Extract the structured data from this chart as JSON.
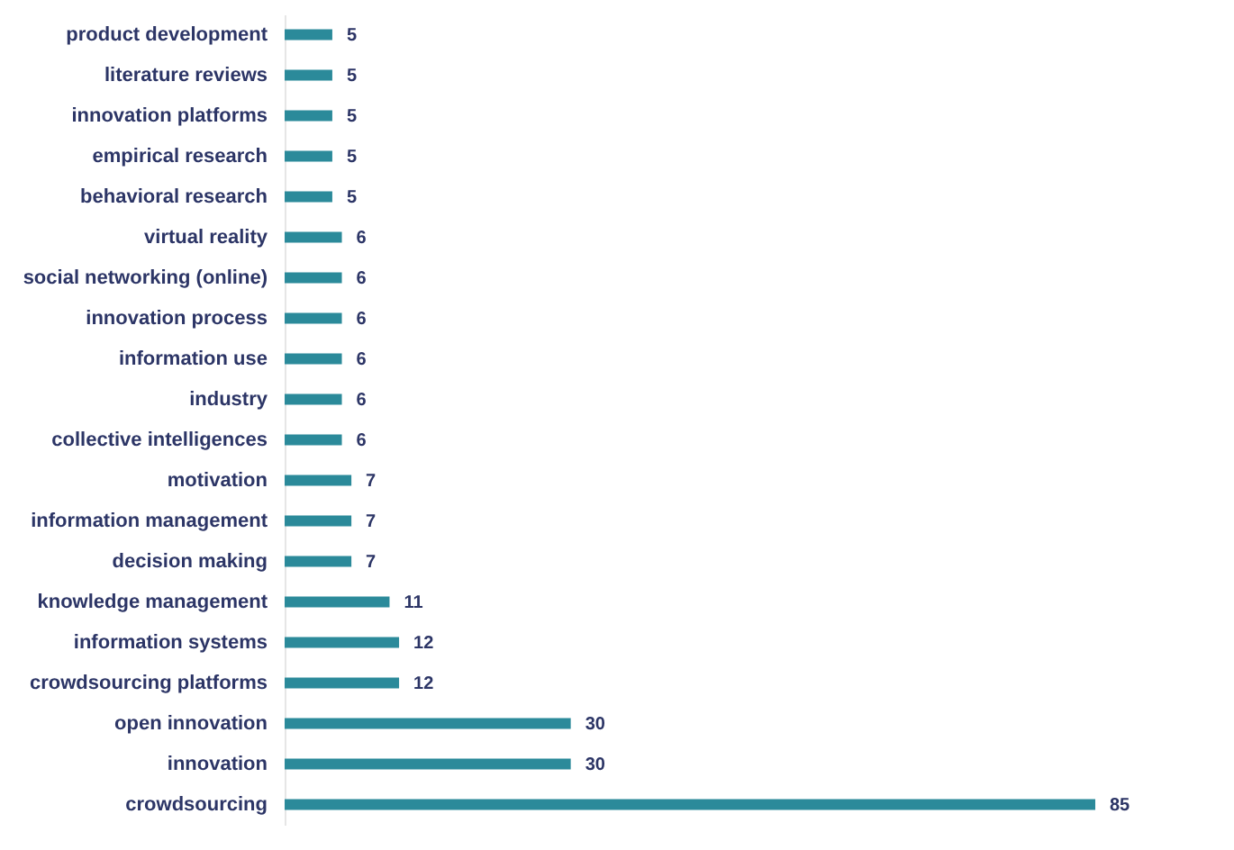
{
  "chart_data": {
    "type": "bar",
    "orientation": "horizontal",
    "data_labels": true,
    "color": "#2b8a9a",
    "categories": [
      "product development",
      "literature reviews",
      "innovation platforms",
      "empirical research",
      "behavioral research",
      "virtual reality",
      "social networking (online)",
      "innovation process",
      "information use",
      "industry",
      "collective intelligences",
      "motivation",
      "information management",
      "decision making",
      "knowledge management",
      "information systems",
      "crowdsourcing platforms",
      "open innovation",
      "innovation",
      "crowdsourcing"
    ],
    "values": [
      5,
      5,
      5,
      5,
      5,
      6,
      6,
      6,
      6,
      6,
      6,
      7,
      7,
      7,
      11,
      12,
      12,
      30,
      30,
      85
    ]
  }
}
